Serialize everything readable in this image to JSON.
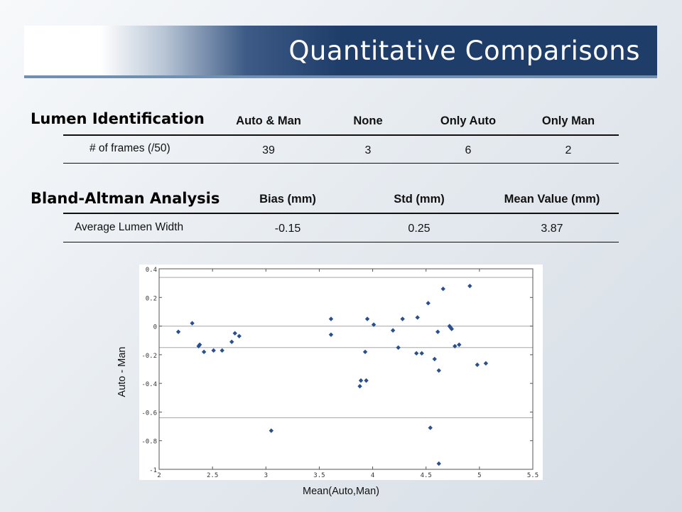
{
  "slide": {
    "title": "Quantitative Comparisons"
  },
  "lumen_table": {
    "section_title": "Lumen Identification",
    "headers": [
      "Auto & Man",
      "None",
      "Only Auto",
      "Only Man"
    ],
    "row_label": "# of frames (/50)",
    "values": [
      "39",
      "3",
      "6",
      "2"
    ]
  },
  "bland_table": {
    "section_title": "Bland-Altman Analysis",
    "headers": [
      "Bias (mm)",
      "Std (mm)",
      "Mean Value (mm)"
    ],
    "row_label": "Average Lumen Width",
    "values": [
      "-0.15",
      "0.25",
      "3.87"
    ]
  },
  "chart_data": {
    "type": "scatter",
    "xlabel": "Mean(Auto,Man)",
    "ylabel": "Auto - Man",
    "xlim": [
      2,
      5.5
    ],
    "ylim": [
      -1,
      0.4
    ],
    "xticks": [
      "2",
      "2.5",
      "3",
      "3.5",
      "4",
      "4.5",
      "5",
      "5.5"
    ],
    "yticks": [
      "0.4",
      "0.2",
      "0",
      "-0.2",
      "-0.4",
      "-0.6",
      "-0.8",
      "-1"
    ],
    "grid": "horizontal",
    "reference_lines": [
      0.34,
      0.0,
      -0.15,
      -0.64
    ],
    "marker_color": "#2a4f8f",
    "points": [
      [
        2.18,
        -0.04
      ],
      [
        2.31,
        0.02
      ],
      [
        2.37,
        -0.14
      ],
      [
        2.38,
        -0.13
      ],
      [
        2.42,
        -0.18
      ],
      [
        2.51,
        -0.17
      ],
      [
        2.59,
        -0.17
      ],
      [
        2.68,
        -0.11
      ],
      [
        2.71,
        -0.05
      ],
      [
        2.75,
        -0.07
      ],
      [
        3.05,
        -0.73
      ],
      [
        3.61,
        0.05
      ],
      [
        3.61,
        -0.06
      ],
      [
        3.88,
        -0.42
      ],
      [
        3.89,
        -0.38
      ],
      [
        3.93,
        -0.18
      ],
      [
        3.94,
        -0.38
      ],
      [
        3.95,
        0.05
      ],
      [
        4.01,
        0.01
      ],
      [
        4.19,
        -0.03
      ],
      [
        4.24,
        -0.15
      ],
      [
        4.28,
        0.05
      ],
      [
        4.41,
        -0.19
      ],
      [
        4.42,
        0.06
      ],
      [
        4.46,
        -0.19
      ],
      [
        4.52,
        0.16
      ],
      [
        4.54,
        -0.71
      ],
      [
        4.58,
        -0.23
      ],
      [
        4.61,
        -0.04
      ],
      [
        4.62,
        -0.31
      ],
      [
        4.62,
        -0.96
      ],
      [
        4.66,
        0.26
      ],
      [
        4.72,
        0.0
      ],
      [
        4.73,
        -0.01
      ],
      [
        4.74,
        -0.02
      ],
      [
        4.77,
        -0.14
      ],
      [
        4.81,
        -0.13
      ],
      [
        4.91,
        0.28
      ],
      [
        4.98,
        -0.27
      ],
      [
        5.06,
        -0.26
      ]
    ]
  }
}
